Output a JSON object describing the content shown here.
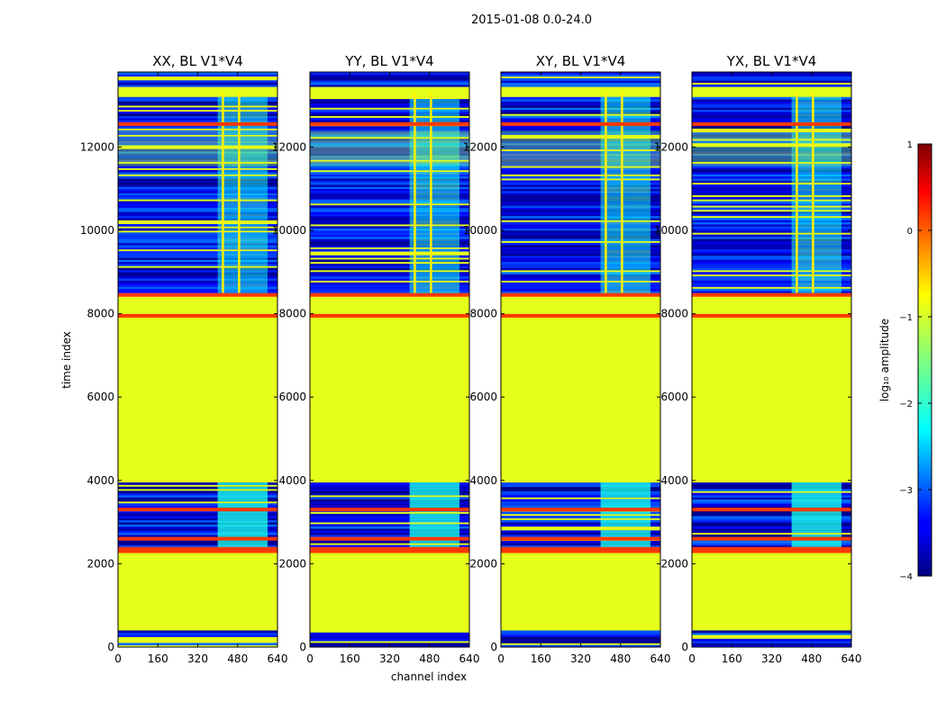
{
  "suptitle": "2015-01-08 0.0-24.0",
  "xlabel": "channel index",
  "ylabel": "time index",
  "colorbar": {
    "label": "log₁₀ amplitude",
    "range": [
      -4,
      1
    ],
    "ticks": [
      "1",
      "0",
      "−1",
      "−2",
      "−3",
      "−4"
    ],
    "tick_values": [
      1,
      0,
      -1,
      -2,
      -3,
      -4
    ],
    "colormap": "jet"
  },
  "chart_data": {
    "type": "heatmap",
    "xlim": [
      0,
      640
    ],
    "ylim": [
      0,
      13800
    ],
    "x_ticks": [
      0,
      160,
      320,
      480,
      640
    ],
    "y_ticks": [
      0,
      2000,
      4000,
      6000,
      8000,
      10000,
      12000
    ],
    "x_tick_labels": [
      "0",
      "160",
      "320",
      "480",
      "640"
    ],
    "y_tick_labels": [
      "0",
      "2000",
      "4000",
      "6000",
      "8000",
      "10000",
      "12000"
    ],
    "panels": [
      {
        "title": "XX, BL V1*V4",
        "rfi_columns": [
          420,
          485
        ],
        "band_start": 400,
        "band_end": 600
      },
      {
        "title": "YY, BL V1*V4",
        "rfi_columns": [
          420,
          485
        ],
        "band_start": 400,
        "band_end": 600
      },
      {
        "title": "XY, BL V1*V4",
        "rfi_columns": [
          420,
          485
        ],
        "band_start": 400,
        "band_end": 600
      },
      {
        "title": "YX, BL V1*V4",
        "rfi_columns": [
          420,
          485
        ],
        "band_start": 400,
        "band_end": 600
      }
    ],
    "flat_value": -1.0,
    "noise_value_range": [
      -4.0,
      -2.8
    ],
    "hot_rows": [
      2300,
      2360,
      2600,
      3300,
      7950,
      8450,
      12550
    ],
    "flagged_time_ranges": [
      [
        400,
        2250
      ],
      [
        3950,
        8350
      ],
      [
        13200,
        13450
      ]
    ],
    "noisy_time_ranges": [
      [
        0,
        400
      ],
      [
        2400,
        3950
      ],
      [
        8500,
        13200
      ],
      [
        13450,
        13800
      ]
    ]
  }
}
